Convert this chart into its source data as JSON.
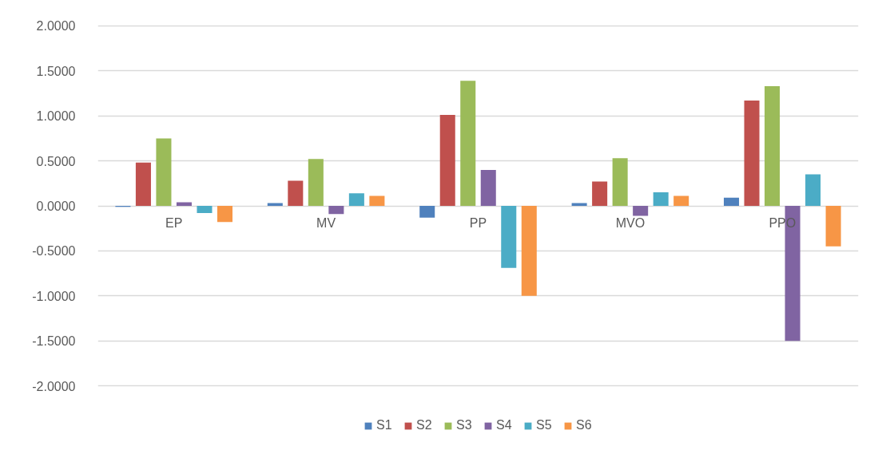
{
  "chart_data": {
    "type": "bar",
    "categories": [
      "EP",
      "MV",
      "PP",
      "MVO",
      "PPO"
    ],
    "series": [
      {
        "name": "S1",
        "color": "#4f81bd",
        "values": [
          -0.01,
          0.03,
          -0.13,
          0.03,
          0.09
        ]
      },
      {
        "name": "S2",
        "color": "#c0504d",
        "values": [
          0.48,
          0.28,
          1.01,
          0.27,
          1.17
        ]
      },
      {
        "name": "S3",
        "color": "#9bbb59",
        "values": [
          0.75,
          0.52,
          1.39,
          0.53,
          1.33
        ]
      },
      {
        "name": "S4",
        "color": "#8064a2",
        "values": [
          0.04,
          -0.09,
          0.4,
          -0.11,
          -1.5
        ]
      },
      {
        "name": "S5",
        "color": "#4bacc6",
        "values": [
          -0.08,
          0.14,
          -0.69,
          0.15,
          0.35
        ]
      },
      {
        "name": "S6",
        "color": "#f79646",
        "values": [
          -0.18,
          0.11,
          -1.0,
          0.11,
          -0.45
        ]
      }
    ],
    "ylim": [
      -2,
      2
    ],
    "yticks": [
      {
        "value": 2,
        "label": "2.0000"
      },
      {
        "value": 1.5,
        "label": "1.5000"
      },
      {
        "value": 1,
        "label": "1.0000"
      },
      {
        "value": 0.5,
        "label": "0.5000"
      },
      {
        "value": 0,
        "label": "0.0000"
      },
      {
        "value": -0.5,
        "label": "-0.5000"
      },
      {
        "value": -1,
        "label": "-1.0000"
      },
      {
        "value": -1.5,
        "label": "-1.5000"
      },
      {
        "value": -2,
        "label": "-2.0000"
      }
    ],
    "grid": "y",
    "legend": "bottom"
  }
}
